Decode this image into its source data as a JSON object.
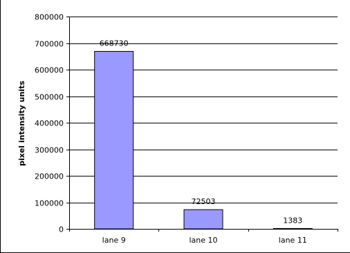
{
  "chart_data": {
    "type": "bar",
    "categories": [
      "lane 9",
      "lane 10",
      "lane 11"
    ],
    "values": [
      668730,
      72503,
      1383
    ],
    "data_labels": [
      "668730",
      "72503",
      "1383"
    ],
    "ylabel": "pixel intensity units",
    "ylim": [
      0,
      800000
    ],
    "yticks": [
      0,
      100000,
      200000,
      300000,
      400000,
      500000,
      600000,
      700000,
      800000
    ],
    "ytick_labels": [
      "0",
      "100000",
      "200000",
      "300000",
      "400000",
      "500000",
      "600000",
      "700000",
      "800000"
    ],
    "grid": true,
    "legend": "none",
    "bar_color": "#9999ff",
    "bar_edge_color": "#000000"
  }
}
